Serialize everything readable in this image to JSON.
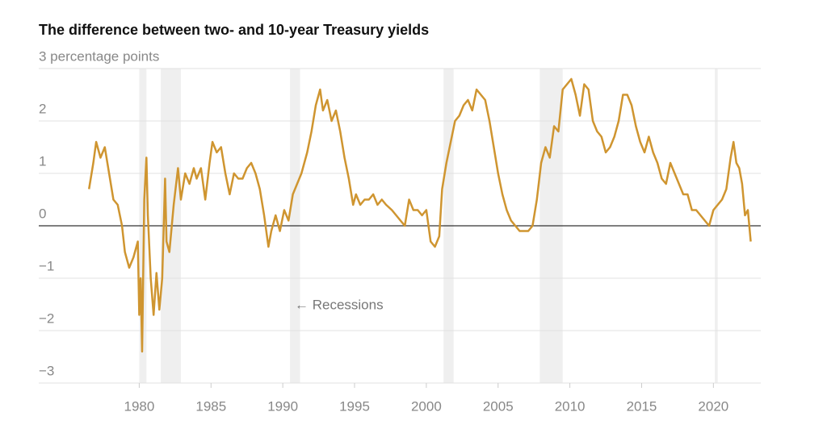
{
  "chart_data": {
    "type": "line",
    "title": "The difference between two- and 10-year Treasury yields",
    "annotation": "← Recessions",
    "recessions": [
      [
        1980.0,
        1980.5
      ],
      [
        1981.5,
        1982.9
      ],
      [
        1990.5,
        1991.2
      ],
      [
        2001.2,
        2001.9
      ],
      [
        2007.9,
        2009.5
      ],
      [
        2020.1,
        2020.3
      ]
    ],
    "x": [
      1976.5,
      1976.8,
      1977.0,
      1977.3,
      1977.6,
      1977.9,
      1978.2,
      1978.5,
      1978.8,
      1979.0,
      1979.3,
      1979.6,
      1979.9,
      1980.0,
      1980.1,
      1980.2,
      1980.35,
      1980.5,
      1980.6,
      1980.8,
      1981.0,
      1981.2,
      1981.4,
      1981.6,
      1981.8,
      1981.9,
      1982.1,
      1982.4,
      1982.7,
      1982.9,
      1983.2,
      1983.5,
      1983.8,
      1984.0,
      1984.3,
      1984.6,
      1984.9,
      1985.1,
      1985.4,
      1985.7,
      1986.0,
      1986.3,
      1986.6,
      1986.9,
      1987.2,
      1987.5,
      1987.8,
      1988.1,
      1988.4,
      1988.7,
      1989.0,
      1989.2,
      1989.5,
      1989.8,
      1990.1,
      1990.4,
      1990.7,
      1991.0,
      1991.3,
      1991.7,
      1992.0,
      1992.3,
      1992.6,
      1992.8,
      1993.1,
      1993.4,
      1993.7,
      1994.0,
      1994.3,
      1994.6,
      1994.9,
      1995.1,
      1995.4,
      1995.7,
      1996.0,
      1996.3,
      1996.6,
      1996.9,
      1997.2,
      1997.6,
      1997.9,
      1998.2,
      1998.5,
      1998.8,
      1999.1,
      1999.4,
      1999.7,
      2000.0,
      2000.3,
      2000.6,
      2000.9,
      2001.1,
      2001.4,
      2001.7,
      2002.0,
      2002.3,
      2002.6,
      2002.9,
      2003.2,
      2003.5,
      2003.8,
      2004.1,
      2004.4,
      2004.7,
      2005.0,
      2005.3,
      2005.6,
      2005.9,
      2006.2,
      2006.5,
      2006.8,
      2007.1,
      2007.4,
      2007.7,
      2008.0,
      2008.3,
      2008.6,
      2008.9,
      2009.2,
      2009.5,
      2009.8,
      2010.1,
      2010.4,
      2010.7,
      2011.0,
      2011.3,
      2011.6,
      2011.9,
      2012.2,
      2012.5,
      2012.8,
      2013.1,
      2013.4,
      2013.7,
      2014.0,
      2014.3,
      2014.6,
      2014.9,
      2015.2,
      2015.5,
      2015.8,
      2016.1,
      2016.4,
      2016.7,
      2017.0,
      2017.3,
      2017.6,
      2017.9,
      2018.2,
      2018.5,
      2018.8,
      2019.1,
      2019.4,
      2019.7,
      2020.0,
      2020.3,
      2020.6,
      2020.9,
      2021.2,
      2021.4,
      2021.6,
      2021.8,
      2022.0,
      2022.2,
      2022.4,
      2022.6
    ],
    "series": [
      {
        "color": "#cf9530",
        "values": [
          0.7,
          1.2,
          1.6,
          1.3,
          1.5,
          1.0,
          0.5,
          0.4,
          0.0,
          -0.5,
          -0.8,
          -0.6,
          -0.3,
          -1.7,
          -1.0,
          -2.4,
          0.5,
          1.3,
          0.2,
          -1.0,
          -1.7,
          -0.9,
          -1.6,
          -1.0,
          0.9,
          -0.3,
          -0.5,
          0.4,
          1.1,
          0.5,
          1.0,
          0.8,
          1.1,
          0.9,
          1.1,
          0.5,
          1.2,
          1.6,
          1.4,
          1.5,
          1.0,
          0.6,
          1.0,
          0.9,
          0.9,
          1.1,
          1.2,
          1.0,
          0.7,
          0.2,
          -0.4,
          -0.1,
          0.2,
          -0.1,
          0.3,
          0.1,
          0.6,
          0.8,
          1.0,
          1.4,
          1.8,
          2.3,
          2.6,
          2.2,
          2.4,
          2.0,
          2.2,
          1.8,
          1.3,
          0.9,
          0.4,
          0.6,
          0.4,
          0.5,
          0.5,
          0.6,
          0.4,
          0.5,
          0.4,
          0.3,
          0.2,
          0.1,
          0.0,
          0.5,
          0.3,
          0.3,
          0.2,
          0.3,
          -0.3,
          -0.4,
          -0.2,
          0.7,
          1.2,
          1.6,
          2.0,
          2.1,
          2.3,
          2.4,
          2.2,
          2.6,
          2.5,
          2.4,
          2.0,
          1.5,
          1.0,
          0.6,
          0.3,
          0.1,
          0.0,
          -0.1,
          -0.1,
          -0.1,
          0.0,
          0.5,
          1.2,
          1.5,
          1.3,
          1.9,
          1.8,
          2.6,
          2.7,
          2.8,
          2.5,
          2.1,
          2.7,
          2.6,
          2.0,
          1.8,
          1.7,
          1.4,
          1.5,
          1.7,
          2.0,
          2.5,
          2.5,
          2.3,
          1.9,
          1.6,
          1.4,
          1.7,
          1.4,
          1.2,
          0.9,
          0.8,
          1.2,
          1.0,
          0.8,
          0.6,
          0.6,
          0.3,
          0.3,
          0.2,
          0.1,
          0.0,
          0.3,
          0.4,
          0.5,
          0.7,
          1.3,
          1.6,
          1.2,
          1.1,
          0.8,
          0.2,
          0.3,
          -0.3
        ]
      }
    ],
    "xlim": [
      1973,
      2023.3
    ],
    "xticks": [
      1980,
      1985,
      1990,
      1995,
      2000,
      2005,
      2010,
      2015,
      2020
    ],
    "ylim": [
      -3,
      3
    ],
    "yticks": [
      {
        "value": 3,
        "label": "3 percentage points"
      },
      2,
      1,
      {
        "value": 0,
        "label": "0"
      },
      {
        "value": -1,
        "label": "−1"
      },
      {
        "value": -2,
        "label": "−2"
      },
      {
        "value": -3,
        "label": "−3"
      }
    ],
    "grid": true
  }
}
